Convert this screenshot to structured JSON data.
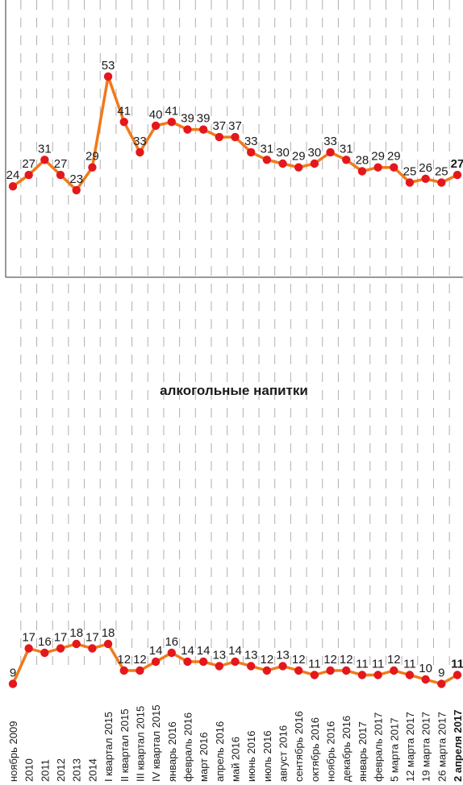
{
  "title": "алкогольные напитки",
  "categories": [
    "ноябрь 2009",
    "2010",
    "2011",
    "2012",
    "2013",
    "2014",
    "I квартал 2015",
    "II квартал 2015",
    "III квартал 2015",
    "IV квартал 2015",
    "январь 2016",
    "февраль 2016",
    "март 2016",
    "апрель 2016",
    "май 2016",
    "июнь 2016",
    "июль 2016",
    "август 2016",
    "сентябрь 2016",
    "октябрь 2016",
    "ноябрь 2016",
    "декабрь 2016",
    "январь 2017",
    "февраль 2017",
    "5 марта 2017",
    "12 марта 2017",
    "19 марта 2017",
    "26 марта 2017",
    "2 апреля 2017"
  ],
  "colors": {
    "line": "#f07a1a",
    "marker": "#e4181c",
    "grid": "#b0b0b0",
    "axis": "#333333"
  },
  "chart_data": [
    {
      "type": "line",
      "title": "",
      "x": [
        "ноябрь 2009",
        "2010",
        "2011",
        "2012",
        "2013",
        "2014",
        "I квартал 2015",
        "II квартал 2015",
        "III квартал 2015",
        "IV квартал 2015",
        "январь 2016",
        "февраль 2016",
        "март 2016",
        "апрель 2016",
        "май 2016",
        "июнь 2016",
        "июль 2016",
        "август 2016",
        "сентябрь 2016",
        "октябрь 2016",
        "ноябрь 2016",
        "декабрь 2016",
        "январь 2017",
        "февраль 2017",
        "5 марта 2017",
        "12 марта 2017",
        "19 марта 2017",
        "26 марта 2017",
        "2 апреля 2017"
      ],
      "series": [
        {
          "values": [
            24,
            27,
            31,
            27,
            23,
            29,
            53,
            41,
            33,
            40,
            41,
            39,
            39,
            37,
            37,
            33,
            31,
            30,
            29,
            30,
            33,
            31,
            28,
            29,
            29,
            25,
            26,
            25,
            27
          ]
        }
      ],
      "ylim": [
        0,
        70
      ],
      "grid": "vertical dashed"
    },
    {
      "type": "line",
      "title": "алкогольные напитки",
      "x": [
        "ноябрь 2009",
        "2010",
        "2011",
        "2012",
        "2013",
        "2014",
        "I квартал 2015",
        "II квартал 2015",
        "III квартал 2015",
        "IV квартал 2015",
        "январь 2016",
        "февраль 2016",
        "март 2016",
        "апрель 2016",
        "май 2016",
        "июнь 2016",
        "июль 2016",
        "август 2016",
        "сентябрь 2016",
        "октябрь 2016",
        "ноябрь 2016",
        "декабрь 2016",
        "январь 2017",
        "февраль 2017",
        "5 марта 2017",
        "12 марта 2017",
        "19 марта 2017",
        "26 марта 2017",
        "2 апреля 2017"
      ],
      "series": [
        {
          "values": [
            9,
            17,
            16,
            17,
            18,
            17,
            18,
            12,
            12,
            14,
            16,
            14,
            14,
            13,
            14,
            13,
            12,
            13,
            12,
            11,
            12,
            12,
            11,
            11,
            12,
            11,
            10,
            9,
            11
          ]
        }
      ],
      "ylim": [
        0,
        60
      ],
      "grid": "vertical dashed"
    }
  ]
}
